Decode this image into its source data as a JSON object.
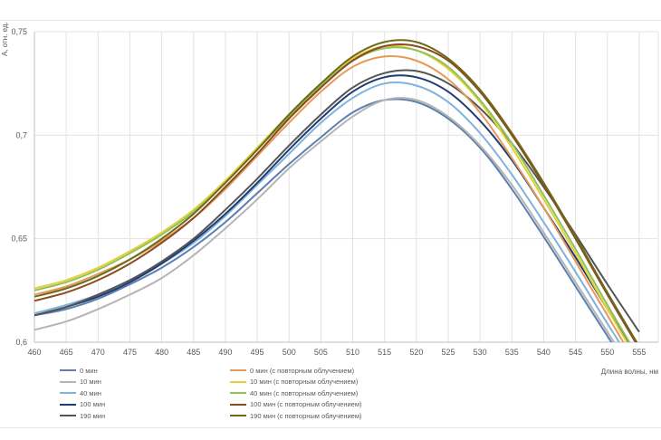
{
  "chart_data": {
    "type": "line",
    "title": "",
    "xlabel": "Длина волны, нм",
    "ylabel": "A, отн. ед.",
    "xlim": [
      460,
      558
    ],
    "ylim": [
      0.6,
      0.75
    ],
    "x_ticks": [
      "460",
      "465",
      "470",
      "475",
      "480",
      "485",
      "490",
      "495",
      "500",
      "505",
      "510",
      "515",
      "520",
      "525",
      "530",
      "535",
      "540",
      "545",
      "550",
      "555"
    ],
    "y_ticks": [
      "0,6",
      "0,65",
      "0,7",
      "0,75"
    ],
    "grid": true,
    "legend_position": "bottom",
    "x": [
      460,
      465,
      470,
      475,
      480,
      485,
      490,
      495,
      500,
      505,
      510,
      515,
      520,
      525,
      530,
      535,
      540,
      545,
      550,
      555
    ],
    "series": [
      {
        "name": "0 мин",
        "color": "#5b7fae",
        "values": [
          0.613,
          0.616,
          0.621,
          0.628,
          0.636,
          0.646,
          0.658,
          0.672,
          0.686,
          0.699,
          0.711,
          0.717,
          0.716,
          0.708,
          0.694,
          0.674,
          0.651,
          0.627,
          0.603,
          0.579
        ]
      },
      {
        "name": "10 мин",
        "color": "#b4b4b4",
        "values": [
          0.606,
          0.61,
          0.616,
          0.623,
          0.631,
          0.642,
          0.655,
          0.669,
          0.684,
          0.697,
          0.709,
          0.717,
          0.717,
          0.709,
          0.695,
          0.676,
          0.653,
          0.629,
          0.605,
          0.581
        ]
      },
      {
        "name": "40 мин",
        "color": "#7fb2dc",
        "values": [
          0.614,
          0.618,
          0.623,
          0.63,
          0.638,
          0.648,
          0.661,
          0.676,
          0.691,
          0.706,
          0.718,
          0.725,
          0.724,
          0.716,
          0.701,
          0.681,
          0.658,
          0.634,
          0.609,
          0.585
        ]
      },
      {
        "name": "100 мин",
        "color": "#1f3b75",
        "values": [
          0.613,
          0.617,
          0.622,
          0.629,
          0.638,
          0.649,
          0.662,
          0.677,
          0.693,
          0.708,
          0.721,
          0.728,
          0.728,
          0.721,
          0.707,
          0.688,
          0.665,
          0.641,
          0.616,
          0.591
        ]
      },
      {
        "name": "190 мин",
        "color": "#555555",
        "values": [
          0.613,
          0.617,
          0.623,
          0.63,
          0.639,
          0.65,
          0.664,
          0.679,
          0.695,
          0.71,
          0.723,
          0.73,
          0.731,
          0.725,
          0.713,
          0.696,
          0.675,
          0.652,
          0.628,
          0.605
        ]
      },
      {
        "name": "0 мин (с повторным облучением)",
        "color": "#e69a5a",
        "values": [
          0.623,
          0.627,
          0.633,
          0.64,
          0.649,
          0.66,
          0.674,
          0.69,
          0.706,
          0.721,
          0.733,
          0.738,
          0.736,
          0.727,
          0.711,
          0.689,
          0.665,
          0.639,
          0.613,
          0.587
        ]
      },
      {
        "name": "10 мин (с повторным облучением)",
        "color": "#e6cf3a",
        "values": [
          0.626,
          0.63,
          0.636,
          0.644,
          0.653,
          0.664,
          0.678,
          0.694,
          0.71,
          0.725,
          0.737,
          0.743,
          0.741,
          0.732,
          0.716,
          0.694,
          0.669,
          0.643,
          0.616,
          0.59
        ]
      },
      {
        "name": "40 мин (с повторным облучением)",
        "color": "#8fc35a",
        "values": [
          0.625,
          0.629,
          0.635,
          0.643,
          0.652,
          0.663,
          0.677,
          0.693,
          0.709,
          0.724,
          0.736,
          0.742,
          0.741,
          0.733,
          0.717,
          0.696,
          0.671,
          0.645,
          0.618,
          0.592
        ]
      },
      {
        "name": "100 мин (с повторным облучением)",
        "color": "#8b4a1f",
        "values": [
          0.62,
          0.624,
          0.63,
          0.638,
          0.648,
          0.66,
          0.675,
          0.691,
          0.708,
          0.723,
          0.736,
          0.743,
          0.743,
          0.736,
          0.721,
          0.7,
          0.676,
          0.65,
          0.623,
          0.597
        ]
      },
      {
        "name": "190 мин (с повторным облучением)",
        "color": "#6b6b1a",
        "values": [
          0.622,
          0.626,
          0.632,
          0.64,
          0.65,
          0.662,
          0.677,
          0.693,
          0.71,
          0.725,
          0.738,
          0.745,
          0.745,
          0.737,
          0.722,
          0.701,
          0.677,
          0.651,
          0.624,
          0.598
        ]
      }
    ]
  }
}
